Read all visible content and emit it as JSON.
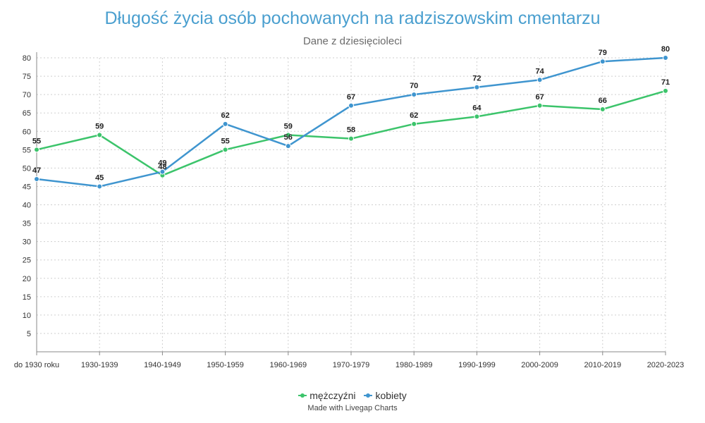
{
  "colors": {
    "men": "#3cc46b",
    "women": "#3f95cf",
    "title": "#4a9fcf"
  },
  "legend": {
    "men": "mężczyźni",
    "women": "kobiety"
  },
  "credit": "Made with Livegap Charts",
  "chart_data": {
    "type": "line",
    "title": "Długość życia osób pochowanych na radziszowskim cmentarzu",
    "subtitle": "Dane z dziesięcioleci",
    "categories": [
      "do 1930 roku",
      "1930-1939",
      "1940-1949",
      "1950-1959",
      "1960-1969",
      "1970-1979",
      "1980-1989",
      "1990-1999",
      "2000-2009",
      "2010-2019",
      "2020-2023"
    ],
    "ylim": [
      0,
      80
    ],
    "yticks": [
      5,
      10,
      15,
      20,
      25,
      30,
      35,
      40,
      45,
      50,
      55,
      60,
      65,
      70,
      75,
      80
    ],
    "grid": true,
    "legend_position": "bottom",
    "series": [
      {
        "name": "mężczyźni",
        "values": [
          55,
          59,
          48,
          55,
          59,
          58,
          62,
          64,
          67,
          66,
          71
        ]
      },
      {
        "name": "kobiety",
        "values": [
          47,
          45,
          49,
          62,
          56,
          67,
          70,
          72,
          74,
          79,
          80
        ]
      }
    ]
  }
}
